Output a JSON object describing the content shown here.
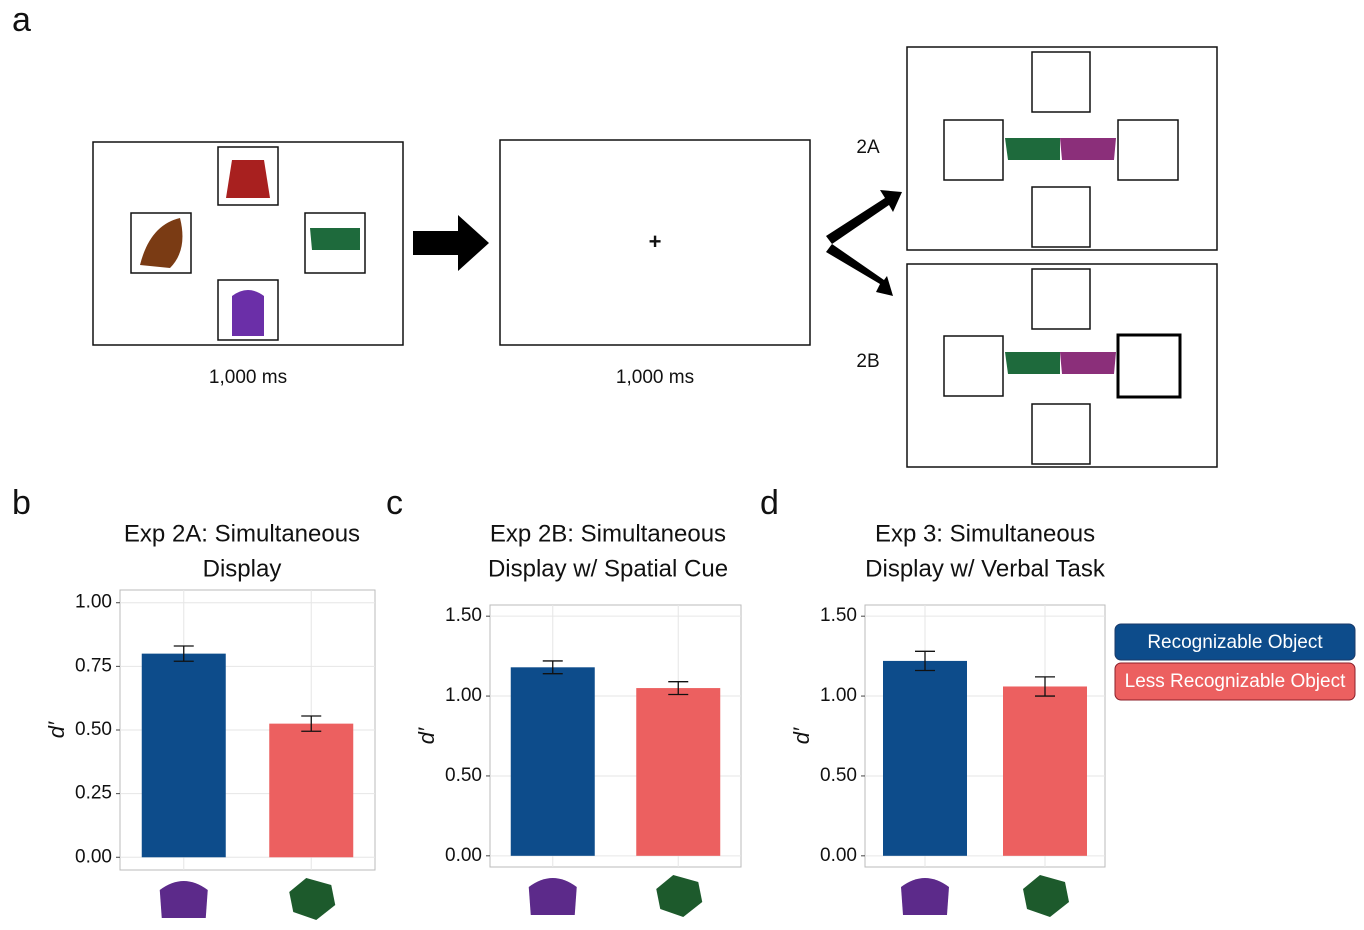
{
  "panel_labels": [
    "a",
    "b",
    "c",
    "d"
  ],
  "diagram": {
    "durations": [
      "1,000 ms",
      "1,000 ms"
    ],
    "fixation": "+",
    "conditions": [
      "2A",
      "2B"
    ]
  },
  "legend": [
    {
      "name": "Recognizable Object",
      "color": "#0d4c8b"
    },
    {
      "name": "Less Recognizable Object",
      "color": "#ec6060"
    }
  ],
  "chart_data": [
    {
      "type": "bar",
      "title": [
        "Exp 2A: Simultaneous",
        "Display"
      ],
      "ylabel": "d′",
      "categories": [
        null,
        null
      ],
      "values": [
        0.8,
        0.525
      ],
      "errors": [
        0.03,
        0.03
      ],
      "colors": [
        "#0d4c8b",
        "#ec6060"
      ],
      "ylim": [
        -0.05,
        1.05
      ],
      "yticks": [
        {
          "value": 0,
          "label": "0.00"
        },
        {
          "value": 0.25,
          "label": "0.25"
        },
        {
          "value": 0.5,
          "label": "0.50"
        },
        {
          "value": 0.75,
          "label": "0.75"
        },
        {
          "value": 1,
          "label": "1.00"
        }
      ],
      "grid": true
    },
    {
      "type": "bar",
      "title": [
        "Exp 2B: Simultaneous",
        "Display w/ Spatial Cue"
      ],
      "ylabel": "d′",
      "categories": [
        null,
        null
      ],
      "values": [
        1.18,
        1.05
      ],
      "errors": [
        0.04,
        0.04
      ],
      "colors": [
        "#0d4c8b",
        "#ec6060"
      ],
      "ylim": [
        -0.07,
        1.57
      ],
      "yticks": [
        {
          "value": 0,
          "label": "0.00"
        },
        {
          "value": 0.5,
          "label": "0.50"
        },
        {
          "value": 1,
          "label": "1.00"
        },
        {
          "value": 1.5,
          "label": "1.50"
        }
      ],
      "grid": true
    },
    {
      "type": "bar",
      "title": [
        "Exp 3: Simultaneous",
        "Display w/ Verbal Task"
      ],
      "ylabel": "d′",
      "categories": [
        null,
        null
      ],
      "values": [
        1.22,
        1.06
      ],
      "errors": [
        0.06,
        0.06
      ],
      "colors": [
        "#0d4c8b",
        "#ec6060"
      ],
      "ylim": [
        -0.07,
        1.57
      ],
      "yticks": [
        {
          "value": 0,
          "label": "0.00"
        },
        {
          "value": 0.5,
          "label": "0.50"
        },
        {
          "value": 1,
          "label": "1.00"
        },
        {
          "value": 1.5,
          "label": "1.50"
        }
      ],
      "grid": true
    }
  ]
}
